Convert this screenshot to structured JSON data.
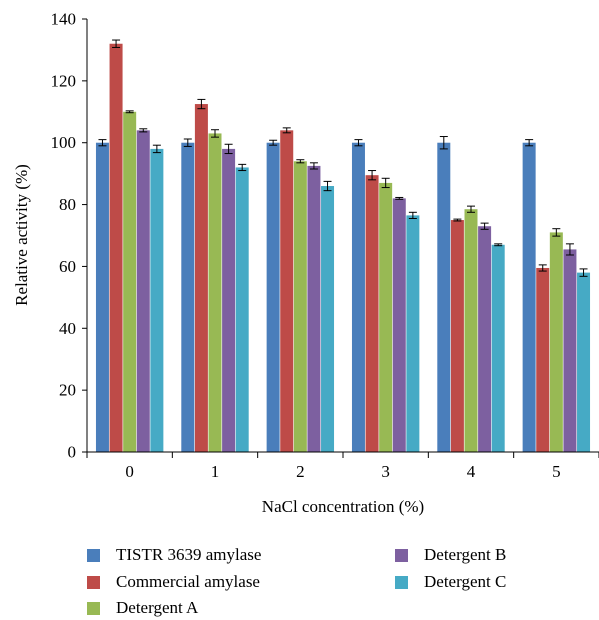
{
  "chart_data": {
    "type": "bar",
    "xlabel": "NaCl concentration (%)",
    "ylabel": "Relative activity (%)",
    "ylim": [
      0,
      140
    ],
    "yticks": [
      0,
      20,
      40,
      60,
      80,
      100,
      120,
      140
    ],
    "categories": [
      "0",
      "1",
      "2",
      "3",
      "4",
      "5"
    ],
    "legend_position": "bottom",
    "series": [
      {
        "name": "TISTR 3639 amylase",
        "color": "#4A7EBB",
        "values": [
          100,
          100,
          100,
          100,
          100,
          100
        ],
        "errors": [
          1.0,
          1.2,
          0.8,
          1.0,
          2.0,
          1.0
        ]
      },
      {
        "name": "Commercial amylase",
        "color": "#BE4B48",
        "values": [
          132,
          112.5,
          104,
          89.5,
          75,
          59.5
        ],
        "errors": [
          1.2,
          1.5,
          0.8,
          1.5,
          0.3,
          1.0
        ]
      },
      {
        "name": "Detergent A",
        "color": "#98B954",
        "values": [
          110,
          103,
          94,
          87,
          78.5,
          71
        ],
        "errors": [
          0.3,
          1.2,
          0.5,
          1.5,
          1.0,
          1.2
        ]
      },
      {
        "name": "Detergent B",
        "color": "#7D60A0",
        "values": [
          104,
          98,
          92.5,
          82,
          73,
          65.5
        ],
        "errors": [
          0.5,
          1.5,
          1.0,
          0.3,
          1.0,
          1.8
        ]
      },
      {
        "name": "Detergent C",
        "color": "#46AAC5",
        "values": [
          98,
          92,
          86,
          76.5,
          67,
          58
        ],
        "errors": [
          1.2,
          1.0,
          1.5,
          1.0,
          0.3,
          1.2
        ]
      }
    ]
  }
}
